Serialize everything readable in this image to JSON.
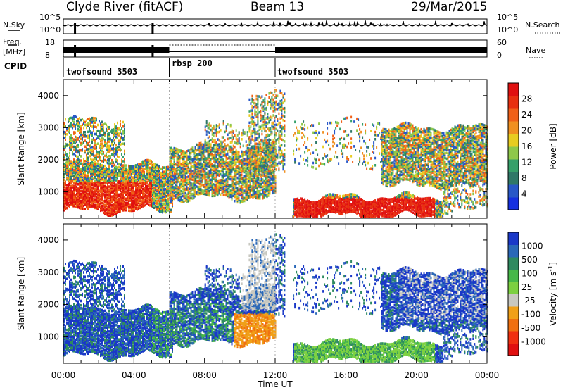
{
  "header": {
    "station": "Clyde River (fitACF)",
    "beam": "Beam 13",
    "date": "29/Mar/2015"
  },
  "top_panel": {
    "left_label": "N.Sky",
    "right_label": "N.Search",
    "left_ticks": [
      "10^5",
      "10^0"
    ],
    "right_ticks": [
      "10^5",
      "10^0"
    ]
  },
  "freq_panel": {
    "left_label_1": "Freq.",
    "left_label_2": "[MHz]",
    "right_label": "Nave",
    "left_ticks": [
      "18",
      "8"
    ],
    "right_ticks": [
      "60",
      "0"
    ]
  },
  "cpid": {
    "label": "CPID",
    "modes": [
      {
        "name": "twofsound 3503",
        "start_hour": 0,
        "end_hour": 6
      },
      {
        "name": "rbsp 200",
        "start_hour": 6,
        "end_hour": 12
      },
      {
        "name": "twofsound 3503",
        "start_hour": 12,
        "end_hour": 24
      }
    ]
  },
  "chart_data": [
    {
      "type": "heatmap",
      "title": "",
      "quantity": "Power",
      "xlabel": "",
      "ylabel": "Slant Range [km]",
      "xlim": [
        0,
        24
      ],
      "ylim": [
        180,
        4500
      ],
      "y_ticks": [
        1000,
        2000,
        3000,
        4000
      ],
      "colorbar": {
        "label": "Power [dB]",
        "ticks": [
          "4",
          "8",
          "12",
          "16",
          "20",
          "24",
          "28"
        ],
        "colors": [
          "#1530e0",
          "#2858c8",
          "#2f7868",
          "#36a06a",
          "#8ec84a",
          "#e8cc20",
          "#f09020",
          "#f06018",
          "#e83010",
          "#e01010"
        ]
      }
    },
    {
      "type": "heatmap",
      "title": "",
      "quantity": "Velocity",
      "xlabel": "Time UT",
      "ylabel": "Slant Range [km]",
      "xlim": [
        0,
        24
      ],
      "ylim": [
        180,
        4500
      ],
      "y_ticks": [
        1000,
        2000,
        3000,
        4000
      ],
      "x_tick_labels": [
        "00:00",
        "04:00",
        "08:00",
        "12:00",
        "16:00",
        "20:00",
        "00:00"
      ],
      "colorbar": {
        "label": "Velocity [m s^-1]",
        "ticks": [
          "1000",
          "500",
          "100",
          "25",
          "-25",
          "-100",
          "-500",
          "-1000"
        ],
        "colors": [
          "#1a38c8",
          "#2a68b8",
          "#2e8a60",
          "#46b848",
          "#7cd040",
          "#c8c8c0",
          "#f0a018",
          "#f07010",
          "#f03010",
          "#e01010"
        ]
      }
    }
  ]
}
